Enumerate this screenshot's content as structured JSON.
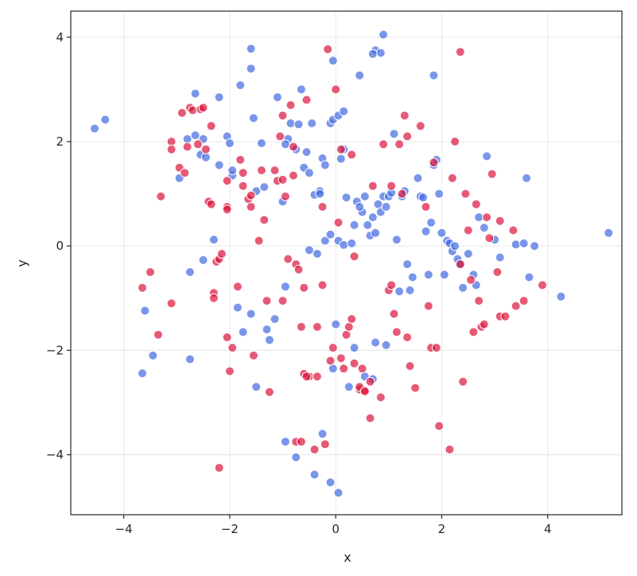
{
  "chart_data": {
    "type": "scatter",
    "title": "",
    "xlabel": "x",
    "ylabel": "y",
    "xlim": [
      -5.0,
      5.4
    ],
    "ylim": [
      -5.15,
      4.5
    ],
    "xticks": [
      -4,
      -2,
      0,
      2,
      4
    ],
    "yticks": [
      -4,
      -2,
      0,
      2,
      4
    ],
    "xtick_labels": [
      "−4",
      "−2",
      "0",
      "2",
      "4"
    ],
    "ytick_labels": [
      "−4",
      "−2",
      "0",
      "2",
      "4"
    ],
    "grid": true,
    "legend": null,
    "series": [
      {
        "color": "#4169e1",
        "points": [
          [
            -4.55,
            2.25
          ],
          [
            -4.35,
            2.42
          ],
          [
            -3.65,
            -2.44
          ],
          [
            -3.6,
            -1.24
          ],
          [
            -3.45,
            -2.1
          ],
          [
            -2.95,
            1.3
          ],
          [
            -2.8,
            2.05
          ],
          [
            -2.75,
            -0.5
          ],
          [
            -2.75,
            -2.17
          ],
          [
            -2.65,
            2.92
          ],
          [
            -2.65,
            2.12
          ],
          [
            -2.55,
            1.75
          ],
          [
            -2.5,
            2.05
          ],
          [
            -2.45,
            1.7
          ],
          [
            -2.5,
            -0.27
          ],
          [
            -2.3,
            0.12
          ],
          [
            -2.2,
            1.55
          ],
          [
            -2.2,
            2.85
          ],
          [
            -2.05,
            2.1
          ],
          [
            -2.0,
            1.97
          ],
          [
            -1.95,
            1.35
          ],
          [
            -1.95,
            1.45
          ],
          [
            -1.8,
            3.08
          ],
          [
            -1.6,
            3.78
          ],
          [
            -1.6,
            3.4
          ],
          [
            -1.55,
            2.45
          ],
          [
            -1.5,
            1.05
          ],
          [
            -1.4,
            1.97
          ],
          [
            -1.35,
            1.13
          ],
          [
            -1.85,
            -1.18
          ],
          [
            -1.75,
            -1.65
          ],
          [
            -1.6,
            -1.3
          ],
          [
            -1.5,
            -2.7
          ],
          [
            -1.3,
            -1.6
          ],
          [
            -1.25,
            -1.8
          ],
          [
            -1.15,
            -1.4
          ],
          [
            -1.1,
            2.85
          ],
          [
            -1.0,
            0.85
          ],
          [
            -0.9,
            2.05
          ],
          [
            -0.95,
            1.95
          ],
          [
            -0.85,
            2.35
          ],
          [
            -0.75,
            1.85
          ],
          [
            -0.7,
            2.33
          ],
          [
            -0.65,
            3.0
          ],
          [
            -0.6,
            1.5
          ],
          [
            -0.55,
            1.8
          ],
          [
            -0.5,
            1.4
          ],
          [
            -0.45,
            2.35
          ],
          [
            -0.4,
            0.98
          ],
          [
            -0.3,
            1.05
          ],
          [
            -0.25,
            1.68
          ],
          [
            -0.2,
            1.55
          ],
          [
            -0.1,
            2.35
          ],
          [
            -0.05,
            2.42
          ],
          [
            -0.05,
            3.55
          ],
          [
            0.05,
            2.5
          ],
          [
            0.1,
            1.67
          ],
          [
            0.15,
            2.58
          ],
          [
            0.2,
            0.93
          ],
          [
            0.4,
            0.85
          ],
          [
            0.45,
            3.27
          ],
          [
            0.5,
            0.65
          ],
          [
            0.55,
            0.95
          ],
          [
            0.6,
            0.4
          ],
          [
            0.65,
            0.2
          ],
          [
            0.7,
            0.55
          ],
          [
            0.75,
            0.25
          ],
          [
            0.8,
            0.8
          ],
          [
            0.85,
            0.65
          ],
          [
            0.9,
            0.95
          ],
          [
            0.95,
            0.75
          ],
          [
            1.0,
            0.95
          ],
          [
            1.05,
            1.02
          ],
          [
            1.1,
            2.15
          ],
          [
            1.15,
            0.12
          ],
          [
            1.2,
            -0.87
          ],
          [
            1.25,
            0.95
          ],
          [
            1.3,
            1.05
          ],
          [
            1.35,
            -0.35
          ],
          [
            1.4,
            -0.85
          ],
          [
            1.45,
            -0.6
          ],
          [
            1.55,
            1.3
          ],
          [
            1.6,
            0.95
          ],
          [
            1.65,
            0.93
          ],
          [
            1.7,
            0.28
          ],
          [
            1.75,
            -0.55
          ],
          [
            1.8,
            0.45
          ],
          [
            1.85,
            1.55
          ],
          [
            1.9,
            1.65
          ],
          [
            1.95,
            1.0
          ],
          [
            2.0,
            0.25
          ],
          [
            2.05,
            -0.55
          ],
          [
            2.1,
            0.1
          ],
          [
            2.15,
            0.05
          ],
          [
            2.2,
            -0.1
          ],
          [
            2.25,
            0.0
          ],
          [
            2.3,
            -0.25
          ],
          [
            2.35,
            -0.35
          ],
          [
            2.4,
            -0.8
          ],
          [
            2.5,
            -0.15
          ],
          [
            2.6,
            -0.55
          ],
          [
            2.65,
            -0.75
          ],
          [
            2.7,
            0.55
          ],
          [
            2.8,
            0.35
          ],
          [
            2.85,
            1.72
          ],
          [
            3.0,
            0.12
          ],
          [
            3.1,
            -0.22
          ],
          [
            3.4,
            0.03
          ],
          [
            3.55,
            0.05
          ],
          [
            3.6,
            1.3
          ],
          [
            3.65,
            -0.6
          ],
          [
            3.75,
            0.0
          ],
          [
            4.25,
            -0.97
          ],
          [
            5.15,
            0.25
          ],
          [
            -0.35,
            -0.15
          ],
          [
            -0.2,
            0.1
          ],
          [
            -0.1,
            0.22
          ],
          [
            0.05,
            0.1
          ],
          [
            0.15,
            0.02
          ],
          [
            0.3,
            0.05
          ],
          [
            -0.5,
            -0.08
          ],
          [
            0.0,
            -1.5
          ],
          [
            -0.05,
            -2.35
          ],
          [
            0.35,
            -1.95
          ],
          [
            0.25,
            -2.7
          ],
          [
            0.55,
            -2.5
          ],
          [
            0.7,
            -2.55
          ],
          [
            0.95,
            -1.9
          ],
          [
            0.75,
            -1.85
          ],
          [
            -0.95,
            -0.78
          ],
          [
            -0.95,
            -3.75
          ],
          [
            -0.75,
            -4.05
          ],
          [
            -0.4,
            -4.38
          ],
          [
            -0.25,
            -3.6
          ],
          [
            -0.1,
            -4.53
          ],
          [
            0.05,
            -4.73
          ],
          [
            0.9,
            4.05
          ],
          [
            0.75,
            3.75
          ],
          [
            0.85,
            3.7
          ],
          [
            0.7,
            3.68
          ],
          [
            1.85,
            3.27
          ],
          [
            0.45,
            0.75
          ],
          [
            0.35,
            0.4
          ],
          [
            -0.3,
            1.0
          ],
          [
            0.15,
            1.85
          ]
        ]
      },
      {
        "color": "#dc143c",
        "points": [
          [
            -3.65,
            -0.8
          ],
          [
            -3.5,
            -0.5
          ],
          [
            -3.35,
            -1.7
          ],
          [
            -3.3,
            0.95
          ],
          [
            -3.1,
            -1.1
          ],
          [
            -3.1,
            2.0
          ],
          [
            -3.1,
            1.85
          ],
          [
            -2.95,
            1.5
          ],
          [
            -2.9,
            2.55
          ],
          [
            -2.85,
            1.4
          ],
          [
            -2.8,
            1.9
          ],
          [
            -2.75,
            2.65
          ],
          [
            -2.7,
            2.6
          ],
          [
            -2.6,
            1.95
          ],
          [
            -2.55,
            2.62
          ],
          [
            -2.5,
            2.65
          ],
          [
            -2.45,
            1.85
          ],
          [
            -2.4,
            0.85
          ],
          [
            -2.35,
            2.3
          ],
          [
            -2.35,
            0.8
          ],
          [
            -2.3,
            -0.9
          ],
          [
            -2.3,
            -1.0
          ],
          [
            -2.25,
            -0.3
          ],
          [
            -2.2,
            -0.25
          ],
          [
            -2.2,
            -4.25
          ],
          [
            -2.15,
            -0.15
          ],
          [
            -2.05,
            0.75
          ],
          [
            -2.05,
            0.7
          ],
          [
            -2.05,
            1.25
          ],
          [
            -2.05,
            -1.75
          ],
          [
            -2.0,
            -2.4
          ],
          [
            -1.95,
            -1.95
          ],
          [
            -1.85,
            -0.78
          ],
          [
            -1.8,
            1.65
          ],
          [
            -1.75,
            1.4
          ],
          [
            -1.75,
            1.15
          ],
          [
            -1.65,
            0.9
          ],
          [
            -1.6,
            0.75
          ],
          [
            -1.6,
            0.97
          ],
          [
            -1.55,
            -2.1
          ],
          [
            -1.45,
            0.1
          ],
          [
            -1.4,
            1.45
          ],
          [
            -1.35,
            0.5
          ],
          [
            -1.3,
            -1.05
          ],
          [
            -1.25,
            -2.8
          ],
          [
            -1.15,
            1.45
          ],
          [
            -1.1,
            1.25
          ],
          [
            -1.05,
            2.1
          ],
          [
            -1.0,
            2.5
          ],
          [
            -1.0,
            -1.05
          ],
          [
            -0.95,
            0.95
          ],
          [
            -0.9,
            -0.25
          ],
          [
            -0.85,
            2.7
          ],
          [
            -0.8,
            1.35
          ],
          [
            -0.75,
            -0.35
          ],
          [
            -0.7,
            -0.45
          ],
          [
            -0.65,
            -1.55
          ],
          [
            -0.6,
            -0.8
          ],
          [
            -0.55,
            2.8
          ],
          [
            -0.5,
            -2.5
          ],
          [
            -0.4,
            -3.9
          ],
          [
            -0.35,
            -1.55
          ],
          [
            -0.25,
            0.75
          ],
          [
            -0.25,
            -0.75
          ],
          [
            -0.2,
            -3.8
          ],
          [
            -0.15,
            3.77
          ],
          [
            -0.1,
            -2.2
          ],
          [
            -0.05,
            -1.95
          ],
          [
            0.0,
            3.0
          ],
          [
            0.05,
            0.45
          ],
          [
            0.1,
            1.85
          ],
          [
            0.1,
            -2.15
          ],
          [
            0.15,
            -2.35
          ],
          [
            0.2,
            -1.7
          ],
          [
            0.25,
            -1.55
          ],
          [
            0.3,
            -1.4
          ],
          [
            0.35,
            -2.25
          ],
          [
            0.35,
            -0.2
          ],
          [
            0.45,
            -2.75
          ],
          [
            0.5,
            -2.35
          ],
          [
            0.55,
            -2.8
          ],
          [
            0.65,
            -3.3
          ],
          [
            0.7,
            1.15
          ],
          [
            0.85,
            -2.9
          ],
          [
            0.9,
            1.95
          ],
          [
            1.0,
            -0.85
          ],
          [
            1.05,
            -0.75
          ],
          [
            1.1,
            -1.3
          ],
          [
            1.15,
            -1.65
          ],
          [
            1.2,
            1.95
          ],
          [
            1.3,
            2.5
          ],
          [
            1.35,
            -1.75
          ],
          [
            1.4,
            -2.3
          ],
          [
            1.5,
            -2.72
          ],
          [
            1.6,
            2.3
          ],
          [
            1.7,
            0.75
          ],
          [
            1.75,
            -1.15
          ],
          [
            1.8,
            -1.95
          ],
          [
            1.85,
            1.6
          ],
          [
            1.9,
            -1.95
          ],
          [
            1.95,
            -3.45
          ],
          [
            2.15,
            -3.9
          ],
          [
            2.2,
            1.3
          ],
          [
            2.25,
            2.0
          ],
          [
            2.35,
            -0.35
          ],
          [
            2.35,
            3.72
          ],
          [
            2.4,
            -2.6
          ],
          [
            2.45,
            1.0
          ],
          [
            2.5,
            0.3
          ],
          [
            2.55,
            -0.65
          ],
          [
            2.6,
            -1.65
          ],
          [
            2.65,
            0.8
          ],
          [
            2.7,
            -1.05
          ],
          [
            2.75,
            -1.55
          ],
          [
            2.8,
            -1.5
          ],
          [
            2.85,
            0.55
          ],
          [
            2.9,
            0.15
          ],
          [
            2.95,
            1.38
          ],
          [
            3.05,
            -0.5
          ],
          [
            3.1,
            0.48
          ],
          [
            3.1,
            -1.35
          ],
          [
            3.2,
            -1.35
          ],
          [
            3.35,
            0.3
          ],
          [
            3.4,
            -1.15
          ],
          [
            3.55,
            -1.05
          ],
          [
            3.9,
            -0.75
          ],
          [
            -1.0,
            1.27
          ],
          [
            -0.8,
            1.9
          ],
          [
            -0.6,
            -2.45
          ],
          [
            -0.55,
            -2.5
          ],
          [
            -0.75,
            -3.75
          ],
          [
            -0.65,
            -3.75
          ],
          [
            -0.35,
            -2.5
          ],
          [
            0.3,
            1.75
          ],
          [
            0.45,
            -2.7
          ],
          [
            0.55,
            -2.78
          ],
          [
            0.65,
            -2.6
          ],
          [
            1.05,
            1.15
          ],
          [
            1.25,
            1.0
          ],
          [
            1.35,
            2.1
          ]
        ]
      }
    ]
  }
}
